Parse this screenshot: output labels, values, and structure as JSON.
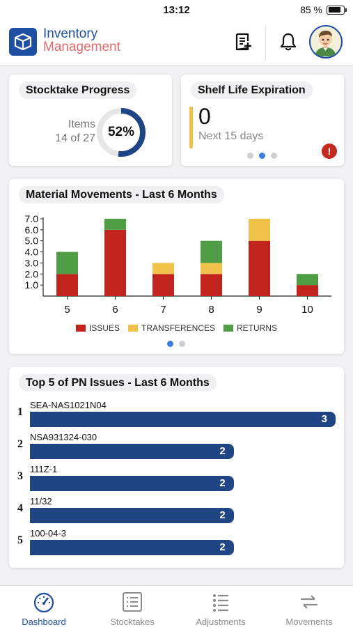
{
  "status_bar": {
    "time": "13:12",
    "battery": "85 %",
    "battery_level": 0.85
  },
  "header": {
    "app_name_line1": "Inventory",
    "app_name_line2": "Management",
    "icons": [
      "inventory-box-icon",
      "new-document-icon",
      "bell-icon",
      "user-avatar"
    ]
  },
  "stocktake": {
    "title": "Stocktake Progress",
    "items_label": "Items",
    "items_count": "14 of 27",
    "percent_text": "52%",
    "progress": 0.52
  },
  "shelf_life": {
    "title": "Shelf Life Expiration",
    "value": "0",
    "subtitle": "Next 15 days",
    "alert": "!",
    "pager_total": 3,
    "pager_active": 2
  },
  "movements": {
    "title": "Material Movements - Last 6 Months",
    "pager_total": 2,
    "pager_active": 1
  },
  "chart_data": {
    "type": "bar",
    "stacked": true,
    "title": "Material Movements - Last 6 Months",
    "categories": [
      "5",
      "6",
      "7",
      "8",
      "9",
      "10"
    ],
    "series": [
      {
        "name": "ISSUES",
        "color": "#c0241c",
        "values": [
          2,
          6,
          2,
          2,
          5,
          1
        ]
      },
      {
        "name": "TRANSFERENCES",
        "color": "#f0c24a",
        "values": [
          0,
          0,
          1,
          1,
          2,
          0
        ]
      },
      {
        "name": "RETURNS",
        "color": "#4f9d45",
        "values": [
          2,
          1,
          0,
          2,
          0,
          1
        ]
      }
    ],
    "y_ticks": [
      "1.0",
      "2.0",
      "3.0",
      "4.0",
      "5.0",
      "6.0",
      "7.0"
    ],
    "ylim": [
      0,
      7
    ],
    "grid": false,
    "legend_position": "bottom"
  },
  "top_pn": {
    "title": "Top 5 of PN Issues - Last 6 Months",
    "max": 3,
    "items": [
      {
        "rank": "1",
        "pn": "SEA-NAS1021N04",
        "count": 3
      },
      {
        "rank": "2",
        "pn": "NSA931324-030",
        "count": 2
      },
      {
        "rank": "3",
        "pn": "111Z-1",
        "count": 2
      },
      {
        "rank": "4",
        "pn": "11/32",
        "count": 2
      },
      {
        "rank": "5",
        "pn": "100-04-3",
        "count": 2
      }
    ]
  },
  "tabs": [
    {
      "label": "Dashboard",
      "icon": "speedometer-icon",
      "active": true
    },
    {
      "label": "Stocktakes",
      "icon": "list-box-icon",
      "active": false
    },
    {
      "label": "Adjustments",
      "icon": "bullet-list-icon",
      "active": false
    },
    {
      "label": "Movements",
      "icon": "arrows-exchange-icon",
      "active": false
    }
  ]
}
